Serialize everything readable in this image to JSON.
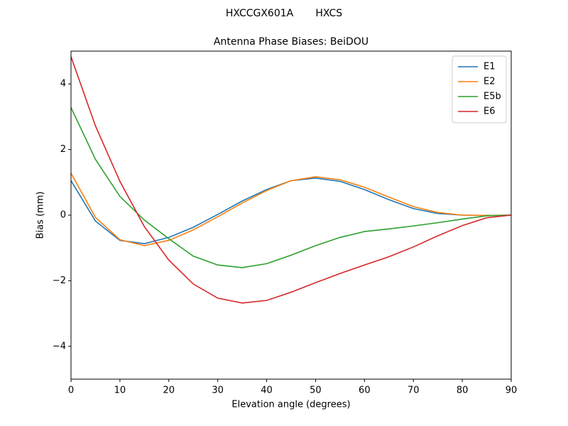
{
  "chart_data": {
    "type": "line",
    "suptitle": "HXCCGX601A       HXCS",
    "title": "Antenna Phase Biases: BeiDOU",
    "x_label": "Elevation angle (degrees)",
    "y_label": "Bias (mm)",
    "x": [
      0,
      5,
      10,
      15,
      20,
      25,
      30,
      35,
      40,
      45,
      50,
      55,
      60,
      65,
      70,
      75,
      80,
      85,
      90
    ],
    "series": [
      {
        "name": "E1",
        "color": "#1f77b4",
        "values": [
          1.05,
          -0.18,
          -0.77,
          -0.87,
          -0.68,
          -0.37,
          0.02,
          0.43,
          0.78,
          1.05,
          1.13,
          1.03,
          0.78,
          0.47,
          0.2,
          0.05,
          0.0,
          -0.01,
          0
        ]
      },
      {
        "name": "E2",
        "color": "#ff7f0e",
        "values": [
          1.28,
          -0.07,
          -0.75,
          -0.93,
          -0.77,
          -0.45,
          -0.05,
          0.37,
          0.75,
          1.05,
          1.17,
          1.08,
          0.85,
          0.55,
          0.26,
          0.08,
          0.0,
          -0.01,
          0
        ]
      },
      {
        "name": "E5b",
        "color": "#2ca02c",
        "values": [
          3.28,
          1.7,
          0.57,
          -0.15,
          -0.72,
          -1.25,
          -1.52,
          -1.6,
          -1.48,
          -1.22,
          -0.93,
          -0.68,
          -0.5,
          -0.42,
          -0.33,
          -0.23,
          -0.12,
          -0.02,
          0
        ]
      },
      {
        "name": "E6",
        "color": "#d62728",
        "values": [
          4.83,
          2.72,
          1.03,
          -0.35,
          -1.37,
          -2.1,
          -2.53,
          -2.68,
          -2.6,
          -2.35,
          -2.06,
          -1.78,
          -1.52,
          -1.27,
          -0.97,
          -0.63,
          -0.32,
          -0.08,
          0
        ]
      }
    ],
    "xlim": [
      0,
      90
    ],
    "xticks": [
      0,
      10,
      20,
      30,
      40,
      50,
      60,
      70,
      80,
      90
    ],
    "ylim": [
      -5,
      5
    ],
    "yticks": [
      {
        "value": -4,
        "label": "−4"
      },
      {
        "value": -2,
        "label": "−2"
      },
      0,
      2,
      4
    ],
    "grid": false,
    "legend": "upper right"
  }
}
